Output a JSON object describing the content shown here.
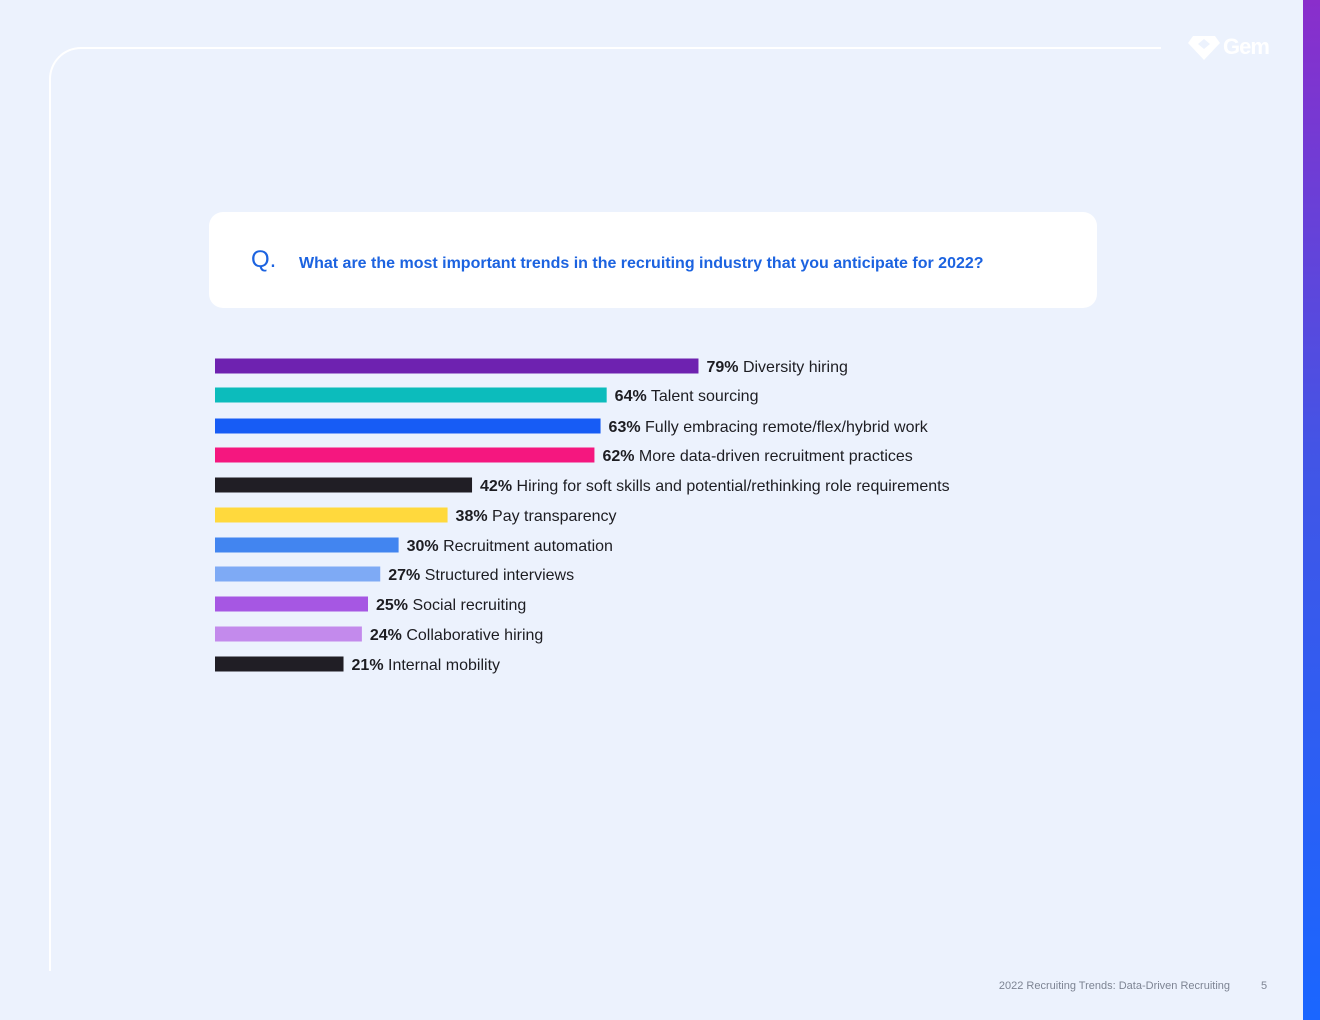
{
  "brand": {
    "name": "Gem"
  },
  "question": {
    "marker": "Q.",
    "text": "What are the most important trends in the recruiting industry that you anticipate for 2022?"
  },
  "footer": {
    "title": "2022 Recruiting Trends: Data-Driven Recruiting",
    "page_number": "5"
  },
  "colors": {
    "accent_blue": "#1c63e0",
    "background": "#ecf2fd"
  },
  "chart_data": {
    "type": "bar",
    "orientation": "horizontal",
    "unit": "%",
    "categories": [
      "Diversity hiring",
      "Talent sourcing",
      "Fully embracing remote/flex/hybrid work",
      "More data-driven recruitment practices",
      "Hiring for soft skills and potential/rethinking role requirements",
      "Pay transparency",
      "Recruitment automation",
      "Structured interviews",
      "Social recruiting",
      "Collaborative hiring",
      "Internal mobility"
    ],
    "values": [
      79,
      64,
      63,
      62,
      42,
      38,
      30,
      27,
      25,
      24,
      21
    ],
    "value_labels": [
      "79%",
      "64%",
      "63%",
      "62%",
      "42%",
      "38%",
      "30%",
      "27%",
      "25%",
      "24%",
      "21%"
    ],
    "colors": [
      "#6e22b0",
      "#0cbcbc",
      "#175cf5",
      "#f5177f",
      "#201e25",
      "#ffd93d",
      "#4285f0",
      "#7eaaf5",
      "#a657e3",
      "#c38aec",
      "#201e25"
    ],
    "xlim": [
      0,
      100
    ],
    "grid": false,
    "legend": "none"
  }
}
